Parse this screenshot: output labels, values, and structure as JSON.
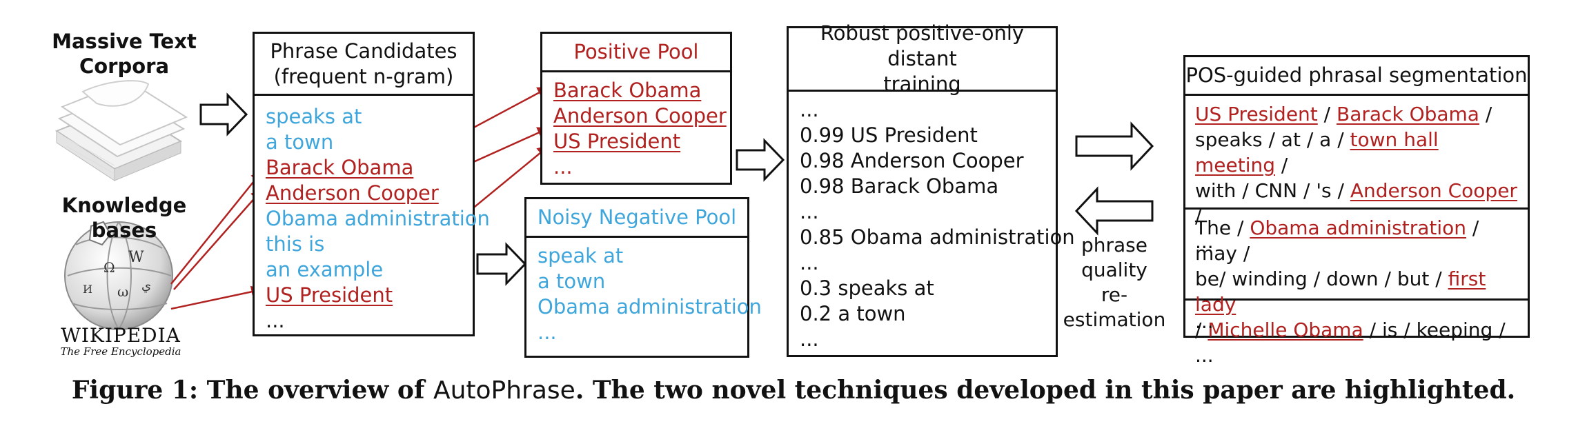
{
  "corpus": {
    "label_line1": "Massive Text",
    "label_line2": "Corpora"
  },
  "kb": {
    "label": "Knowledge bases",
    "wiki_wordmark": "WIKIPEDIA",
    "wiki_tagline": "The Free Encyclopedia"
  },
  "candidates": {
    "title_line1": "Phrase Candidates",
    "title_line2": "(frequent n-gram)",
    "items": [
      "speaks at",
      "a town",
      "Barack Obama",
      "Anderson Cooper",
      "Obama administration",
      "this is",
      "an example",
      "US President",
      "..."
    ]
  },
  "positive_pool": {
    "title": "Positive Pool",
    "items": [
      "Barack Obama",
      "Anderson Cooper",
      "US President",
      "..."
    ]
  },
  "negative_pool": {
    "title": "Noisy Negative Pool",
    "items": [
      "speak at",
      "a town",
      "Obama administration",
      "..."
    ]
  },
  "training": {
    "title_line1": "Robust positive-only distant",
    "title_line2": "training",
    "items": [
      "...",
      "0.99 US President",
      "0.98 Anderson Cooper",
      "0.98 Barack Obama",
      "...",
      "0.85 Obama administration",
      "...",
      "0.3 speaks at",
      "0.2 a town",
      "..."
    ]
  },
  "segmentation": {
    "title": "POS-guided phrasal segmentation",
    "s1": {
      "a": "US President",
      "b": " / ",
      "c": "Barack Obama",
      "d": " /",
      "e": "speaks / at / a / ",
      "f": "town  hall meeting",
      "g": " /",
      "h": "with / CNN / 's / ",
      "i": "Anderson Cooper",
      "j": " /",
      "k": "..."
    },
    "s2": {
      "a": "The / ",
      "b": "Obama administration",
      "c": " / may /",
      "d": "be/ winding / down / but / ",
      "e": "first lady",
      "f": "/ ",
      "g": "Michelle Obama",
      "h": " / is / keeping /  ..."
    },
    "s3": "..."
  },
  "reestimation": {
    "line1": "phrase quality",
    "line2": "re-estimation"
  },
  "caption": {
    "prefix": "Figure 1: The overview of ",
    "name": "AutoPhrase",
    "suffix": ". The two novel techniques developed in this paper are highlighted."
  },
  "colors": {
    "highlight_red": "#b0211f",
    "negative_blue": "#3fa6dc",
    "border": "#111111"
  }
}
